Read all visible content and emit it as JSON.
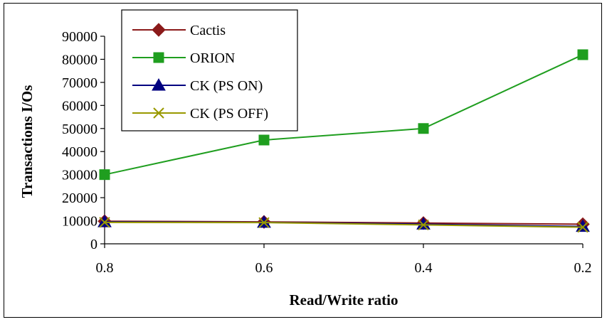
{
  "chart_data": {
    "type": "line",
    "title": "",
    "xlabel": "Read/Write ratio",
    "ylabel": "Transactions I/Os",
    "categories": [
      "0.8",
      "0.6",
      "0.4",
      "0.2"
    ],
    "ylim": [
      0,
      90000
    ],
    "yticks": [
      0,
      10000,
      20000,
      30000,
      40000,
      50000,
      60000,
      70000,
      80000,
      90000
    ],
    "grid": false,
    "legend_position": "top-left",
    "series": [
      {
        "name": "Cactis",
        "values": [
          9800,
          9500,
          9000,
          8500
        ],
        "color": "#8b1a1a",
        "marker": "diamond"
      },
      {
        "name": "ORION",
        "values": [
          30000,
          45000,
          50000,
          82000
        ],
        "color": "#1f9e1f",
        "marker": "square"
      },
      {
        "name": "CK (PS ON)",
        "values": [
          9500,
          9300,
          8500,
          7500
        ],
        "color": "#000080",
        "marker": "triangle"
      },
      {
        "name": "CK (PS OFF)",
        "values": [
          9300,
          9200,
          8200,
          7200
        ],
        "color": "#999900",
        "marker": "x"
      }
    ]
  }
}
